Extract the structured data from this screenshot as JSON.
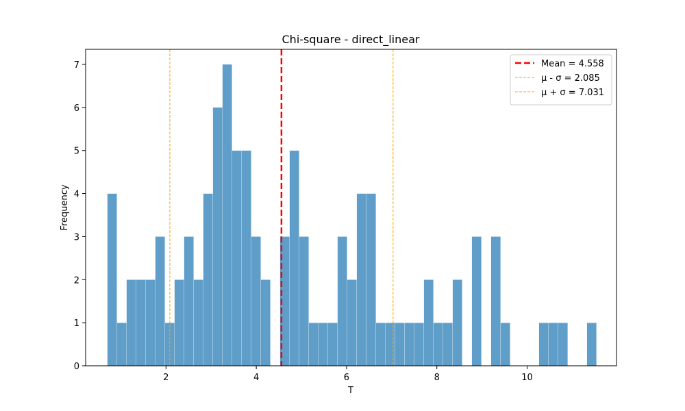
{
  "chart_data": {
    "type": "bar",
    "title": "Chi-square - direct_linear",
    "xlabel": "T",
    "ylabel": "Frequency",
    "xlim": [
      0.22,
      11.98
    ],
    "ylim": [
      0,
      7.35
    ],
    "xticks": [
      2,
      4,
      6,
      8,
      10
    ],
    "yticks": [
      0,
      1,
      2,
      3,
      4,
      5,
      6,
      7
    ],
    "bins": {
      "start": 0.7,
      "width": 0.2125,
      "counts": [
        4,
        1,
        2,
        2,
        2,
        3,
        1,
        2,
        3,
        2,
        4,
        6,
        7,
        5,
        5,
        3,
        2,
        0,
        3,
        5,
        3,
        1,
        1,
        1,
        3,
        2,
        4,
        4,
        1,
        1,
        1,
        1,
        1,
        2,
        1,
        1,
        2,
        0,
        3,
        0,
        3,
        1,
        0,
        0,
        0,
        1,
        1,
        1,
        0,
        0,
        1
      ]
    },
    "bar_color": "#5f9ec9",
    "lines": [
      {
        "name": "Mean = 4.558",
        "value": 4.558,
        "color": "#ff0000",
        "style": "dashed-thick"
      },
      {
        "name": "μ - σ = 2.085",
        "value": 2.085,
        "color": "#ffa500",
        "style": "dashed-thin"
      },
      {
        "name": "μ + σ = 7.031",
        "value": 7.031,
        "color": "#ffa500",
        "style": "dashed-thin"
      }
    ],
    "legend_position": "top-right",
    "grid": false
  }
}
